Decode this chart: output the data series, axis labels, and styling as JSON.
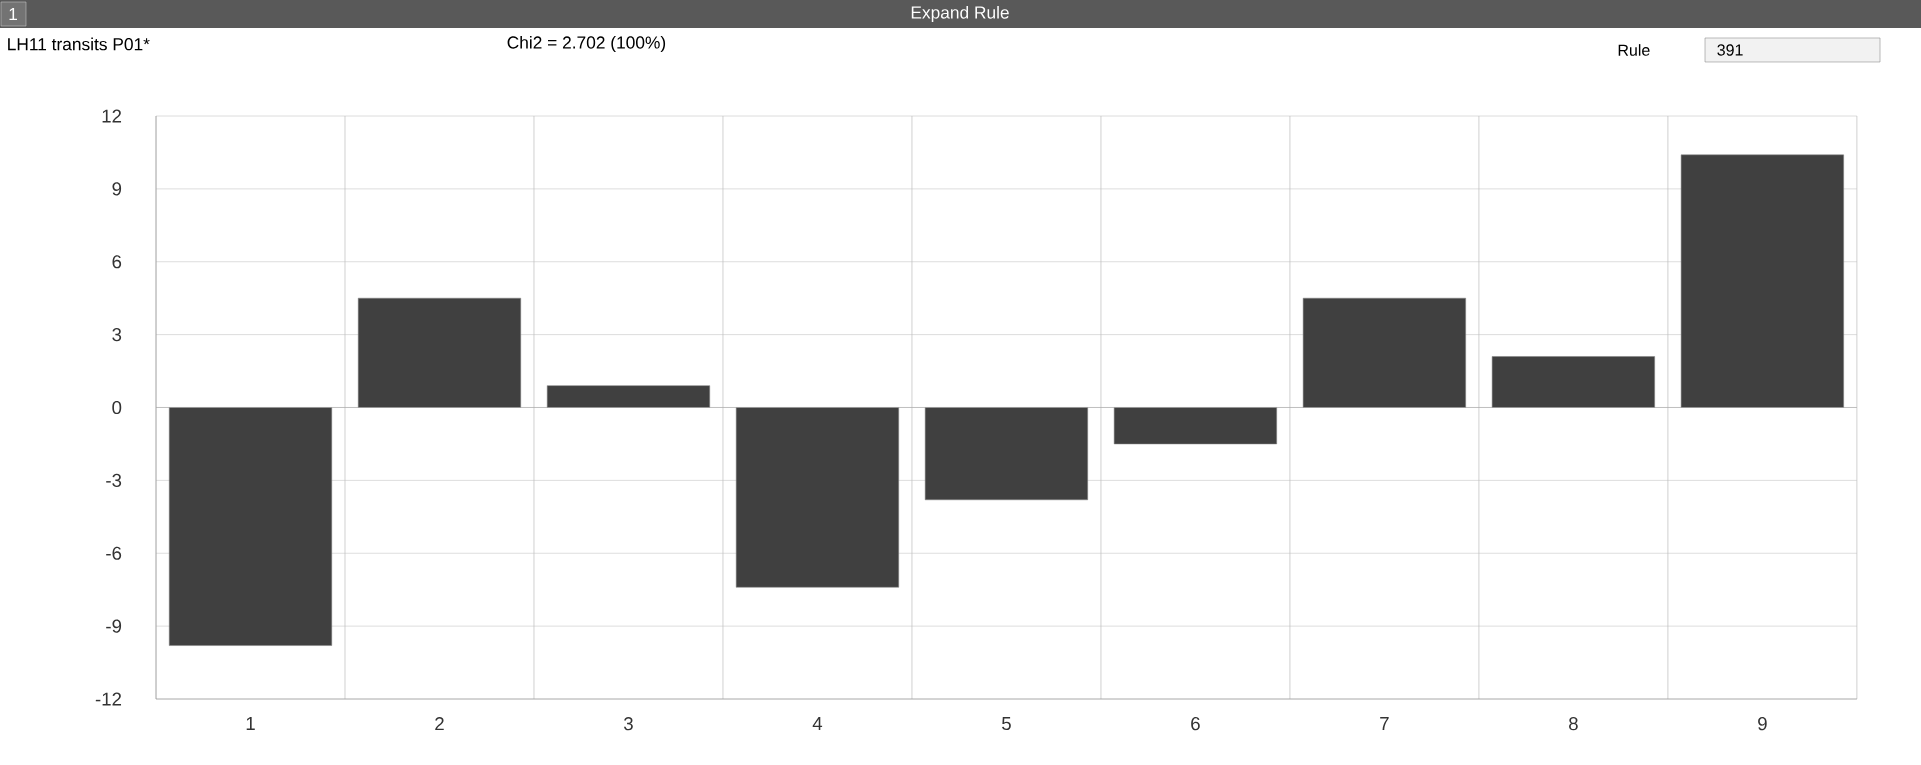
{
  "chart_data": {
    "type": "bar",
    "title": "LH11 transits P01*",
    "subtitle": "Chi2 = 2.702 (100%)",
    "annotations": [
      "1",
      "Expand Rule",
      "Rule",
      "391"
    ],
    "categories": [
      "1",
      "2",
      "3",
      "4",
      "5",
      "6",
      "7",
      "8",
      "9"
    ],
    "values": [
      -9.8,
      4.5,
      0.9,
      -7.4,
      -3.8,
      -1.5,
      4.5,
      2.1,
      10.4
    ],
    "color": "#404040",
    "ylim": [
      -12,
      12
    ],
    "yticks": [
      -12,
      -9,
      -6,
      -3,
      0,
      3,
      6,
      9,
      12
    ],
    "grid": true
  }
}
